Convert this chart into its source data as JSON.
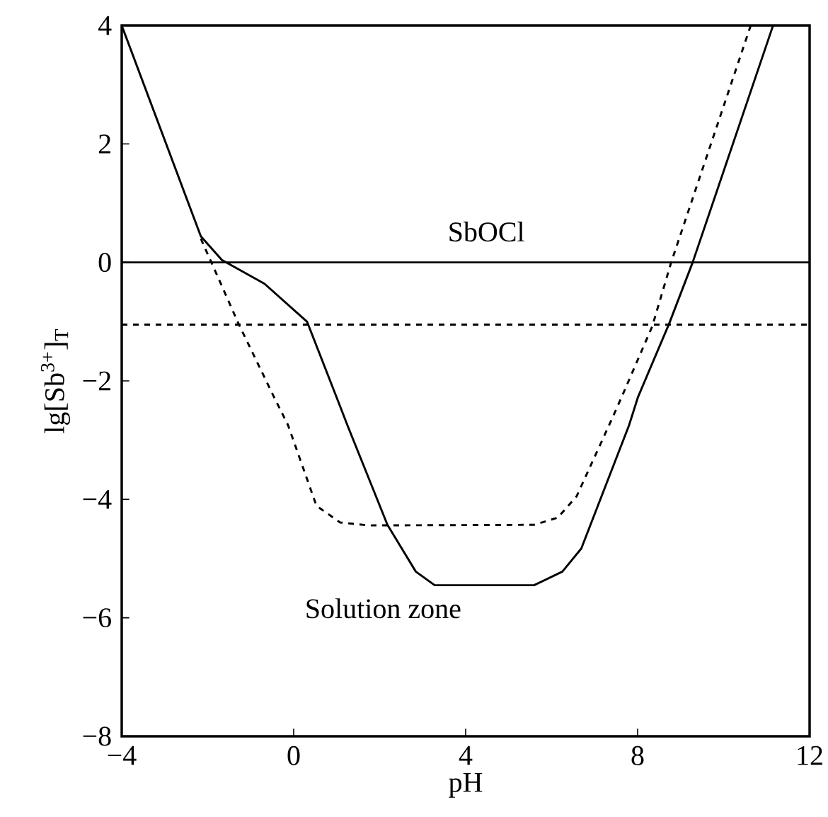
{
  "chart_data": {
    "type": "line",
    "xlabel": "pH",
    "ylabel": "lg[Sb$^{3+}$]$_{T}$",
    "xlim": [
      -4,
      12
    ],
    "ylim": [
      -8,
      4
    ],
    "xticks": [
      {
        "value": -4,
        "label": "−4"
      },
      0,
      4,
      8,
      12
    ],
    "yticks": [
      {
        "value": -8,
        "label": "−8"
      },
      {
        "value": -6,
        "label": "−6"
      },
      {
        "value": -4,
        "label": "−4"
      },
      {
        "value": -2,
        "label": "−2"
      },
      0,
      2,
      4
    ],
    "series": [
      {
        "color": "#000000",
        "line_style": "solid",
        "x": [
          -4,
          -2.16,
          -1.67,
          -0.68,
          0.31,
          1.08,
          1.25,
          2.18,
          2.84,
          3.28,
          5.59,
          6.25,
          6.69,
          7.8,
          8.01,
          8.73,
          9.28,
          11.09,
          11.15
        ],
        "values": [
          4,
          0.44,
          0.04,
          -0.36,
          -1.0,
          -2.43,
          -2.75,
          -4.43,
          -5.22,
          -5.45,
          -5.45,
          -5.22,
          -4.83,
          -2.75,
          -2.27,
          -1.04,
          0,
          3.87,
          4
        ]
      },
      {
        "color": "#000000",
        "line_style": "dashed",
        "x": [
          -2.16,
          -1.89,
          -1.28,
          -0.46,
          -0.13,
          0.53,
          1.08,
          1.74,
          5.59,
          6.14,
          6.58,
          7.41,
          7.63,
          8.34,
          8.78,
          10.63
        ],
        "values": [
          0.4,
          -0.04,
          -1.04,
          -2.27,
          -2.75,
          -4.11,
          -4.39,
          -4.44,
          -4.43,
          -4.31,
          -3.95,
          -2.63,
          -2.27,
          -1.08,
          0,
          4
        ]
      }
    ],
    "ref_lines": [
      {
        "axis": "y",
        "value": 0,
        "line_style": "solid"
      },
      {
        "axis": "y",
        "value": -1.05,
        "line_style": "dashed"
      }
    ],
    "annotations": [
      "SbOCl",
      "Solution zone"
    ]
  }
}
